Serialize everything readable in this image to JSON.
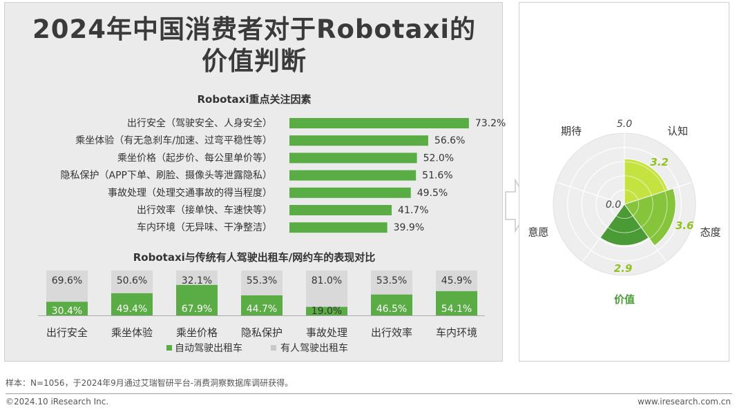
{
  "title_line1": "2024年中国消费者对于Robotaxi的",
  "title_line2": "价值判断",
  "footer": {
    "note": "样本：N=1056，于2024年9月通过艾瑞智研平台-消费洞察数据库调研获得。",
    "copyright": "©2024.10 iResearch Inc.",
    "url": "www.iresearch.com.cn"
  },
  "colors": {
    "green": "#5aac45",
    "gray_bar": "#d9d9d9",
    "radar_light": "#c4e341",
    "radar_mid": "#86c43b",
    "radar_dark": "#4a9b36",
    "radar_label": "#8dc21f"
  },
  "chart_data": [
    {
      "type": "bar",
      "orientation": "horizontal",
      "title": "Robotaxi重点关注因素",
      "categories": [
        "出行安全（驾驶安全、人身安全）",
        "乘坐体验（有无急刹车/加速、过弯平稳性等）",
        "乘坐价格（起步价、每公里单价等）",
        "隐私保护（APP下单、刷脸、摄像头等泄露隐私）",
        "事故处理（处理交通事故的得当程度）",
        "出行效率（接单快、车速快等）",
        "车内环境（无异味、干净整洁）"
      ],
      "values": [
        73.2,
        56.6,
        52.0,
        51.6,
        49.5,
        41.7,
        39.9
      ],
      "value_labels": [
        "73.2%",
        "56.6%",
        "52.0%",
        "51.6%",
        "49.5%",
        "41.7%",
        "39.9%"
      ]
    },
    {
      "type": "bar",
      "stacked": true,
      "title": "Robotaxi与传统有人驾驶出租车/网约车的表现对比",
      "categories": [
        "出行安全",
        "乘坐体验",
        "乘坐价格",
        "隐私保护",
        "事故处理",
        "出行效率",
        "车内环境"
      ],
      "series": [
        {
          "name": "自动驾驶出租车",
          "values": [
            30.4,
            49.4,
            67.9,
            44.7,
            19.0,
            46.5,
            54.1
          ],
          "labels": [
            "30.4%",
            "49.4%",
            "67.9%",
            "44.7%",
            "19.0%",
            "46.5%",
            "54.1%"
          ]
        },
        {
          "name": "有人驾驶出租车",
          "values": [
            69.6,
            50.6,
            32.1,
            55.3,
            81.0,
            53.5,
            45.9
          ],
          "labels": [
            "69.6%",
            "50.6%",
            "32.1%",
            "55.3%",
            "81.0%",
            "53.5%",
            "45.9%"
          ]
        }
      ],
      "ylim": [
        0,
        100
      ],
      "legend": "bottom"
    },
    {
      "type": "radar",
      "variant": "polar-area",
      "title": "价值",
      "max_label": "5.0",
      "min_label": "0.0",
      "rmax": 5.0,
      "dimensions": [
        {
          "name": "认知",
          "value": 3.2,
          "label": "3.2"
        },
        {
          "name": "态度",
          "value": 3.6,
          "label": "3.6"
        },
        {
          "name": "价值",
          "value": 2.9,
          "label": "2.9"
        },
        {
          "name": "意愿",
          "value": 0.0,
          "label": ""
        },
        {
          "name": "期待",
          "value": 0.0,
          "label": ""
        }
      ]
    }
  ]
}
